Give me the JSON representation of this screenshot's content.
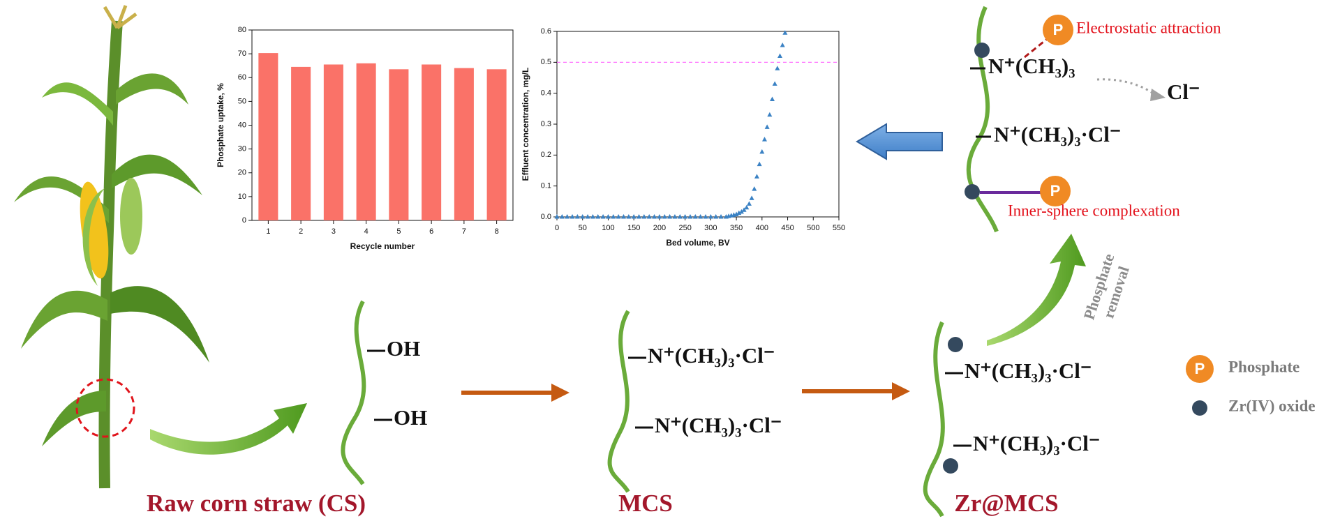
{
  "chart_data": [
    {
      "type": "bar",
      "x_label": "Recycle number",
      "y_label": "Phosphate uptake, %",
      "categories": [
        "1",
        "2",
        "3",
        "4",
        "5",
        "6",
        "7",
        "8"
      ],
      "values": [
        70.3,
        64.5,
        65.5,
        66,
        63.5,
        65.5,
        64,
        63.5
      ],
      "color": "#fa7268",
      "ylim": [
        0,
        80
      ],
      "yticks": [
        0,
        10,
        20,
        30,
        40,
        50,
        60,
        70,
        80
      ]
    },
    {
      "type": "scatter",
      "x_label": "Bed volume, BV",
      "y_label": "Effluent concentration, mg/L",
      "x": [
        0,
        10,
        20,
        30,
        40,
        50,
        60,
        70,
        80,
        90,
        100,
        110,
        120,
        130,
        140,
        150,
        160,
        170,
        180,
        190,
        200,
        210,
        220,
        230,
        240,
        250,
        260,
        270,
        280,
        290,
        300,
        310,
        320,
        330,
        335,
        340,
        345,
        350,
        355,
        360,
        365,
        370,
        375,
        380,
        385,
        390,
        395,
        400,
        405,
        410,
        415,
        420,
        425,
        430,
        435,
        440,
        445
      ],
      "values": [
        0,
        0,
        0,
        0,
        0,
        0,
        0,
        0,
        0,
        0,
        0,
        0,
        0,
        0,
        0,
        0,
        0,
        0,
        0,
        0,
        0,
        0,
        0,
        0,
        0,
        0,
        0,
        0,
        0,
        0,
        0,
        0,
        0,
        0,
        0.002,
        0.004,
        0.006,
        0.008,
        0.012,
        0.016,
        0.022,
        0.03,
        0.042,
        0.06,
        0.09,
        0.13,
        0.17,
        0.21,
        0.25,
        0.29,
        0.33,
        0.38,
        0.43,
        0.48,
        0.52,
        0.555,
        0.595
      ],
      "color": "#3b82c4",
      "xlim": [
        0,
        550
      ],
      "xticks": [
        0,
        50,
        100,
        150,
        200,
        250,
        300,
        350,
        400,
        450,
        500,
        550
      ],
      "ylim": [
        0,
        0.6
      ],
      "yticks": [
        {
          "value": 0,
          "label": "0.0"
        },
        0.1,
        0.2,
        0.3,
        0.4,
        0.5,
        0.6
      ],
      "reference_line": {
        "value": 0.5,
        "color": "#ff66ff"
      }
    }
  ],
  "diagram": {
    "phosphate_symbol": "P",
    "mechanism": {
      "quaternary_amine": "N⁺(CH₃)₃",
      "electrostatic": "Electrostatic attraction",
      "released_ion": "Cl⁻",
      "exchange_site": "N⁺(CH₃)₃·Cl⁻",
      "inner_sphere": "Inner-sphere complexation"
    },
    "hydroxyl": "OH",
    "modified_group": "N⁺(CH₃)₃·Cl⁻",
    "removal_label": [
      "Phosphate",
      "removal"
    ],
    "materials": [
      "Raw corn straw (CS)",
      "MCS",
      "Zr@MCS"
    ],
    "legend": [
      "Phosphate",
      "Zr(IV) oxide"
    ]
  }
}
